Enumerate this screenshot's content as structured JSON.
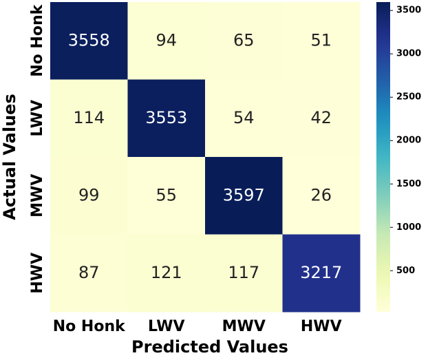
{
  "chart_data": {
    "type": "heatmap",
    "x_label": "Predicted Values",
    "y_label": "Actual Values",
    "x_categories": [
      "No Honk",
      "LWV",
      "MWV",
      "HWV"
    ],
    "y_categories": [
      "No Honk",
      "LWV",
      "MWV",
      "HWV"
    ],
    "values": [
      [
        3558,
        94,
        65,
        51
      ],
      [
        114,
        3553,
        54,
        42
      ],
      [
        99,
        55,
        3597,
        26
      ],
      [
        87,
        121,
        117,
        3217
      ]
    ],
    "colormap": "YlGnBu",
    "clim": [
      26,
      3597
    ],
    "cticks": [
      500,
      1000,
      1500,
      2000,
      2500,
      3000,
      3500
    ]
  }
}
